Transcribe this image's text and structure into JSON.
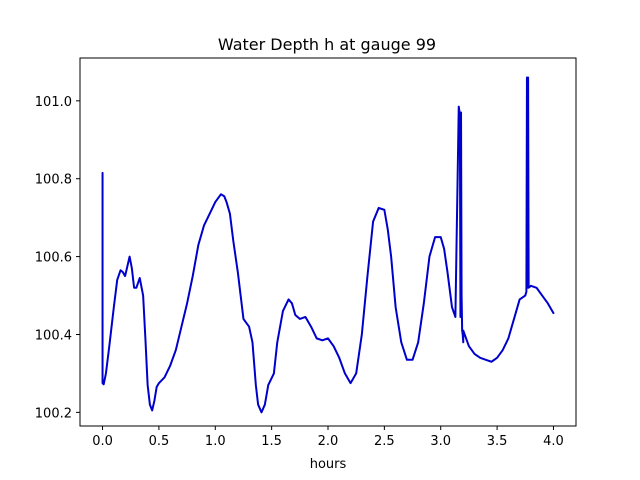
{
  "chart_data": {
    "type": "line",
    "title": "Water Depth h at gauge 99",
    "xlabel": "hours",
    "ylabel": "",
    "xlim": [
      -0.2,
      4.2
    ],
    "ylim": [
      100.165,
      101.11
    ],
    "xticks": [
      {
        "value": 0.0,
        "label": "0.0"
      },
      {
        "value": 0.5,
        "label": "0.5"
      },
      {
        "value": 1.0,
        "label": "1.0"
      },
      {
        "value": 1.5,
        "label": "1.5"
      },
      {
        "value": 2.0,
        "label": "2.0"
      },
      {
        "value": 2.5,
        "label": "2.5"
      },
      {
        "value": 3.0,
        "label": "3.0"
      },
      {
        "value": 3.5,
        "label": "3.5"
      },
      {
        "value": 4.0,
        "label": "4.0"
      }
    ],
    "yticks": [
      {
        "value": 100.2,
        "label": "100.2"
      },
      {
        "value": 100.4,
        "label": "100.4"
      },
      {
        "value": 100.6,
        "label": "100.6"
      },
      {
        "value": 100.8,
        "label": "100.8"
      },
      {
        "value": 101.0,
        "label": "101.0"
      }
    ],
    "grid": false,
    "color": "#0000cc",
    "x": [
      0.0,
      0.0,
      0.0,
      0.01,
      0.03,
      0.06,
      0.1,
      0.13,
      0.16,
      0.18,
      0.2,
      0.22,
      0.24,
      0.26,
      0.28,
      0.3,
      0.33,
      0.36,
      0.38,
      0.4,
      0.42,
      0.44,
      0.46,
      0.48,
      0.5,
      0.55,
      0.6,
      0.65,
      0.7,
      0.75,
      0.8,
      0.85,
      0.9,
      0.95,
      1.0,
      1.05,
      1.08,
      1.1,
      1.13,
      1.16,
      1.2,
      1.25,
      1.3,
      1.33,
      1.36,
      1.38,
      1.41,
      1.44,
      1.47,
      1.52,
      1.55,
      1.6,
      1.65,
      1.68,
      1.71,
      1.75,
      1.8,
      1.85,
      1.9,
      1.95,
      2.0,
      2.05,
      2.1,
      2.15,
      2.2,
      2.25,
      2.3,
      2.35,
      2.4,
      2.45,
      2.5,
      2.53,
      2.56,
      2.6,
      2.65,
      2.7,
      2.75,
      2.8,
      2.85,
      2.9,
      2.95,
      3.0,
      3.03,
      3.06,
      3.1,
      3.13,
      3.16,
      3.17,
      3.175,
      3.18,
      3.185,
      3.19,
      3.195,
      3.2,
      3.2,
      3.25,
      3.3,
      3.35,
      3.4,
      3.45,
      3.5,
      3.55,
      3.6,
      3.65,
      3.7,
      3.75,
      3.76,
      3.765,
      3.77,
      3.775,
      3.78,
      3.78,
      3.8,
      3.85,
      3.9,
      3.95,
      4.0
    ],
    "y": [
      100.815,
      100.48,
      100.275,
      100.272,
      100.3,
      100.37,
      100.47,
      100.54,
      100.565,
      100.56,
      100.55,
      100.575,
      100.6,
      100.57,
      100.52,
      100.52,
      100.545,
      100.5,
      100.39,
      100.27,
      100.22,
      100.205,
      100.23,
      100.265,
      100.275,
      100.29,
      100.32,
      100.36,
      100.42,
      100.48,
      100.55,
      100.63,
      100.68,
      100.71,
      100.74,
      100.76,
      100.755,
      100.74,
      100.71,
      100.64,
      100.56,
      100.44,
      100.42,
      100.38,
      100.27,
      100.22,
      100.2,
      100.22,
      100.27,
      100.3,
      100.38,
      100.46,
      100.49,
      100.48,
      100.45,
      100.44,
      100.445,
      100.42,
      100.39,
      100.385,
      100.39,
      100.37,
      100.34,
      100.3,
      100.275,
      100.3,
      100.4,
      100.55,
      100.69,
      100.725,
      100.72,
      100.67,
      100.6,
      100.47,
      100.38,
      100.335,
      100.335,
      100.38,
      100.48,
      100.6,
      100.65,
      100.65,
      100.62,
      100.56,
      100.47,
      100.445,
      100.985,
      100.965,
      100.445,
      100.97,
      100.5,
      100.41,
      100.4,
      100.38,
      100.41,
      100.37,
      100.35,
      100.34,
      100.335,
      100.33,
      100.34,
      100.36,
      100.39,
      100.44,
      100.49,
      100.5,
      100.51,
      101.06,
      100.52,
      101.06,
      100.52,
      100.52,
      100.525,
      100.52,
      100.5,
      100.48,
      100.455
    ]
  }
}
